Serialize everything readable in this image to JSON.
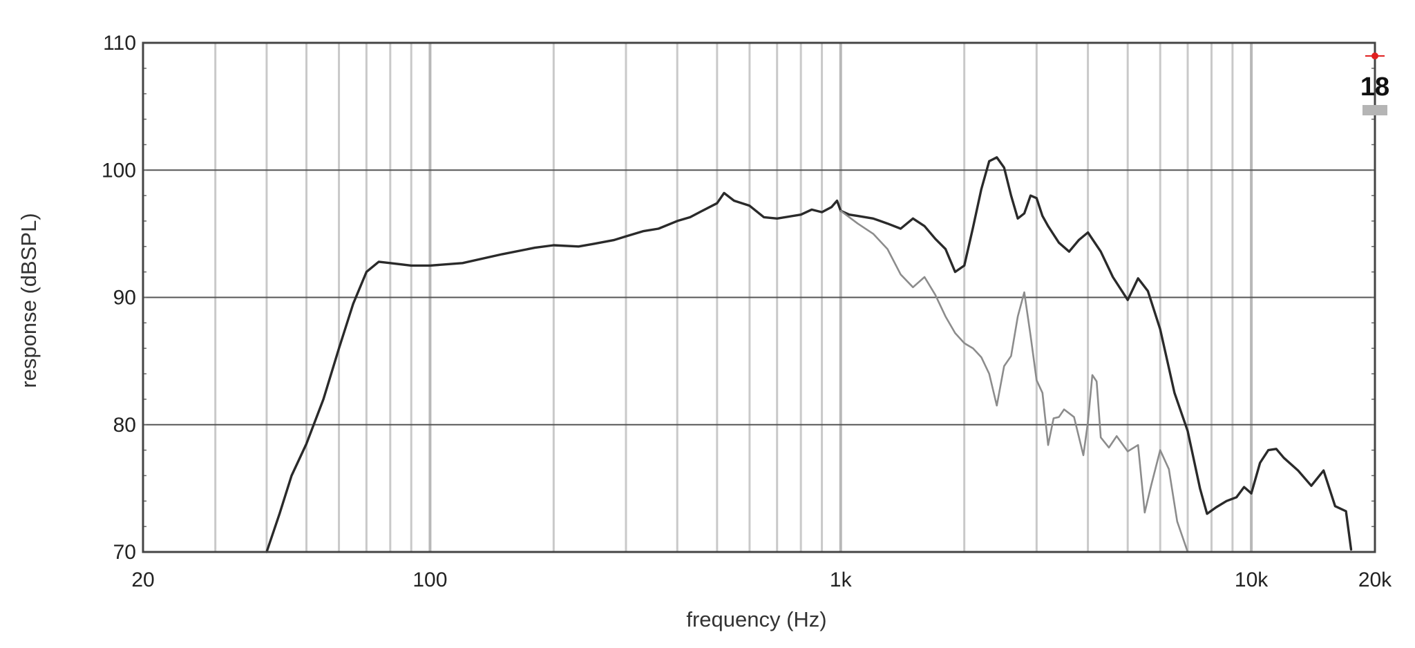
{
  "chart_data": {
    "type": "line",
    "title": "",
    "xlabel": "frequency (Hz)",
    "ylabel": "response (dBSPL)",
    "xscale": "log",
    "xlim": [
      20,
      20000
    ],
    "ylim": [
      70,
      110
    ],
    "grid": true,
    "x_ticks": [
      {
        "value": 20,
        "label": "20"
      },
      {
        "value": 100,
        "label": "100"
      },
      {
        "value": 1000,
        "label": "1k"
      },
      {
        "value": 10000,
        "label": "10k"
      },
      {
        "value": 20000,
        "label": "20k"
      }
    ],
    "y_ticks": [
      {
        "value": 70,
        "label": "70"
      },
      {
        "value": 80,
        "label": "80"
      },
      {
        "value": 90,
        "label": "90"
      },
      {
        "value": 100,
        "label": "100"
      },
      {
        "value": 110,
        "label": "110"
      }
    ],
    "series": [
      {
        "color": "#2a2a2a",
        "x": [
          40,
          43,
          46,
          50,
          55,
          60,
          65,
          70,
          75,
          80,
          90,
          100,
          120,
          150,
          180,
          200,
          230,
          250,
          280,
          300,
          330,
          360,
          400,
          430,
          460,
          500,
          520,
          550,
          600,
          650,
          700,
          800,
          850,
          900,
          950,
          980,
          1000,
          1050,
          1100,
          1200,
          1300,
          1400,
          1500,
          1600,
          1700,
          1800,
          1900,
          2000,
          2100,
          2200,
          2300,
          2400,
          2500,
          2600,
          2700,
          2800,
          2900,
          3000,
          3100,
          3200,
          3400,
          3600,
          3800,
          4000,
          4300,
          4600,
          5000,
          5300,
          5600,
          6000,
          6500,
          7000,
          7500,
          7800,
          8200,
          8700,
          9200,
          9600,
          10000,
          10500,
          11000,
          11500,
          12000,
          13000,
          14000,
          15000,
          16000,
          17000,
          17500
        ],
        "y": [
          70,
          73,
          76,
          78.5,
          82,
          86,
          89.5,
          92,
          92.8,
          92.7,
          92.5,
          92.5,
          92.7,
          93.4,
          93.9,
          94.1,
          94.0,
          94.2,
          94.5,
          94.8,
          95.2,
          95.4,
          96.0,
          96.3,
          96.8,
          97.4,
          98.2,
          97.6,
          97.2,
          96.3,
          96.2,
          96.5,
          96.9,
          96.7,
          97.1,
          97.6,
          96.8,
          96.5,
          96.4,
          96.2,
          95.8,
          95.4,
          96.2,
          95.6,
          94.6,
          93.8,
          92.0,
          92.5,
          95.5,
          98.5,
          100.7,
          101.0,
          100.2,
          98.0,
          96.2,
          96.6,
          98.0,
          97.8,
          96.4,
          95.6,
          94.3,
          93.6,
          94.5,
          95.1,
          93.6,
          91.6,
          89.8,
          91.5,
          90.5,
          87.5,
          82.5,
          79.5,
          75.0,
          73.0,
          73.5,
          74.0,
          74.3,
          75.1,
          74.6,
          77.0,
          78.0,
          78.1,
          77.4,
          76.4,
          75.2,
          76.4,
          73.6,
          73.2,
          70.2
        ]
      },
      {
        "color": "#8c8c8c",
        "x": [
          1000,
          1100,
          1200,
          1300,
          1400,
          1500,
          1600,
          1700,
          1800,
          1900,
          2000,
          2100,
          2200,
          2300,
          2400,
          2500,
          2600,
          2700,
          2800,
          2900,
          3000,
          3100,
          3200,
          3300,
          3400,
          3500,
          3700,
          3900,
          4000,
          4100,
          4200,
          4300,
          4500,
          4700,
          5000,
          5300,
          5500,
          5700,
          6000,
          6300,
          6600,
          7000
        ],
        "y": [
          96.8,
          95.8,
          95.0,
          93.8,
          91.8,
          90.8,
          91.6,
          90.2,
          88.5,
          87.2,
          86.4,
          86.0,
          85.3,
          84.0,
          81.5,
          84.6,
          85.4,
          88.5,
          90.4,
          87.0,
          83.5,
          82.5,
          78.4,
          80.5,
          80.6,
          81.2,
          80.6,
          77.6,
          80.2,
          83.9,
          83.4,
          79.0,
          78.2,
          79.1,
          77.9,
          78.4,
          73.1,
          75.2,
          78.0,
          76.5,
          72.4,
          70.0
        ]
      }
    ]
  },
  "logo": {
    "text": "18"
  }
}
